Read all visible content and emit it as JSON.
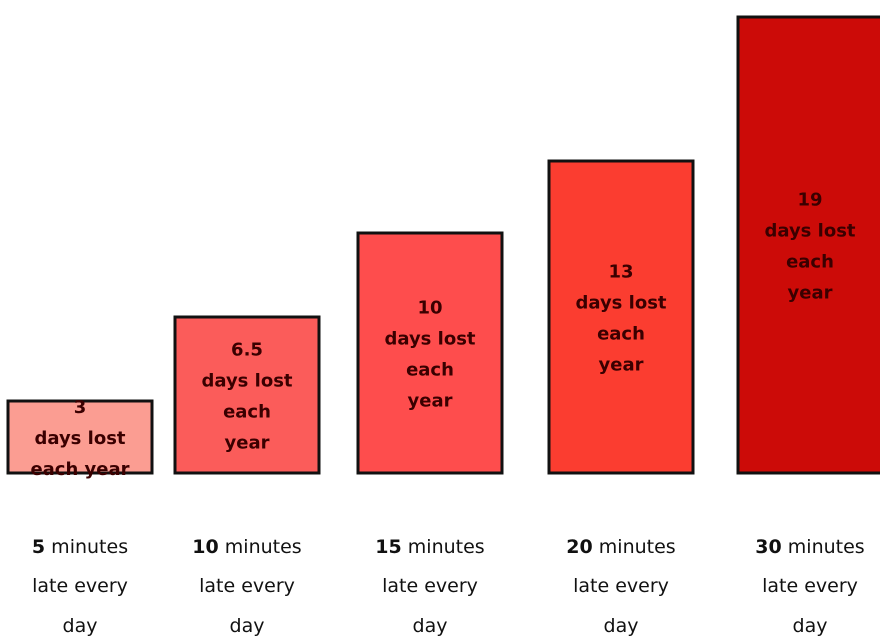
{
  "chart_data": {
    "type": "bar",
    "categories": [
      {
        "bold": "5",
        "rest": " minutes",
        "line2": "late every",
        "line3": "day"
      },
      {
        "bold": "10",
        "rest": " minutes",
        "line2": "late every",
        "line3": "day"
      },
      {
        "bold": "15",
        "rest": " minutes",
        "line2": "late every",
        "line3": "day"
      },
      {
        "bold": "20",
        "rest": " minutes",
        "line2": "late every",
        "line3": "day"
      },
      {
        "bold": "30",
        "rest": " minutes",
        "line2": "late every",
        "line3": "day"
      }
    ],
    "values": [
      3,
      6.5,
      10,
      13,
      19
    ],
    "bar_labels": [
      [
        "3",
        "days lost",
        "each year"
      ],
      [
        "6.5",
        "days lost",
        "each",
        "year"
      ],
      [
        "10",
        "days lost",
        "each",
        "year"
      ],
      [
        "13",
        "days lost",
        "each",
        "year"
      ],
      [
        "19",
        "days lost",
        "each",
        "year"
      ]
    ],
    "colors": [
      "#fb9d92",
      "#fb5c5a",
      "#fe4d4d",
      "#fb3d30",
      "#cc0b08"
    ],
    "title": "",
    "xlabel": "",
    "ylabel": "",
    "grid": false,
    "legend": "none"
  }
}
